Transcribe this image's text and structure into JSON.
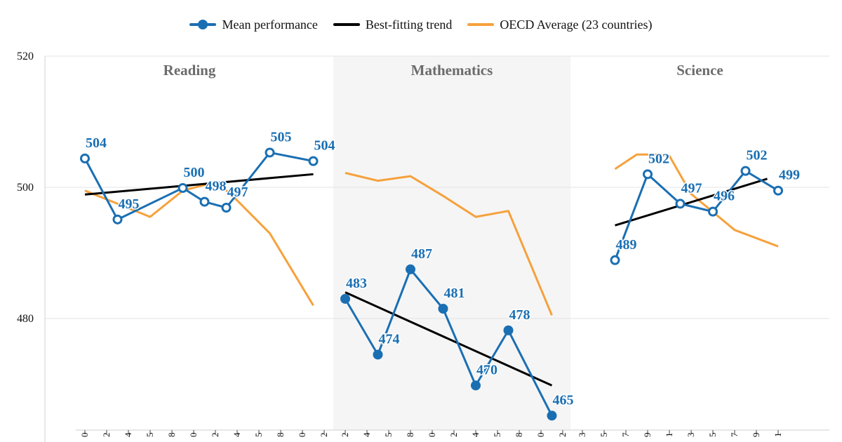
{
  "legend": {
    "mean_label": "Mean performance",
    "trend_label": "Best-fitting trend",
    "oecd_label": "OECD Average (23 countries)"
  },
  "colors": {
    "mean": "#1a6fb3",
    "trend": "#000000",
    "oecd": "#f6a13c",
    "panel_shade": "#f5f5f5",
    "grid": "#e3e3e3",
    "title": "#6b6b6b"
  },
  "chart_data": {
    "type": "line",
    "ylim": [
      463,
      520
    ],
    "yticks": [
      480,
      500,
      520
    ],
    "grid": true,
    "legend_position": "top-center",
    "panels": [
      {
        "title": "Reading",
        "x_tick_labels": [
          "0",
          "2",
          "4",
          "5",
          "8",
          "0",
          "2",
          "4",
          "5",
          "8",
          "0",
          "2"
        ],
        "mean": [
          [
            0,
            504.4
          ],
          [
            1.5,
            495.1
          ],
          [
            4.5,
            499.9
          ],
          [
            5.5,
            497.8
          ],
          [
            6.5,
            496.9
          ],
          [
            8.5,
            505.3
          ],
          [
            10.5,
            504.0
          ]
        ],
        "mean_labels": [
          "504",
          "495",
          "500",
          "498",
          "497",
          "505",
          "504"
        ],
        "trend": [
          [
            0,
            498.9
          ],
          [
            10.5,
            502.0
          ]
        ],
        "oecd": [
          [
            0,
            499.5
          ],
          [
            1.5,
            497.5
          ],
          [
            3,
            495.5
          ],
          [
            4.5,
            499.5
          ],
          [
            6,
            500.8
          ],
          [
            6.7,
            499.0
          ],
          [
            8.5,
            493.0
          ],
          [
            10.5,
            482.0
          ]
        ]
      },
      {
        "title": "Mathematics",
        "x_tick_labels": [
          "2",
          "4",
          "5",
          "8",
          "0",
          "2",
          "4",
          "5",
          "8",
          "0",
          "2"
        ],
        "mean": [
          [
            0,
            483.0
          ],
          [
            1.5,
            474.5
          ],
          [
            3,
            487.5
          ],
          [
            4.5,
            481.5
          ],
          [
            6,
            469.8
          ],
          [
            7.5,
            478.2
          ],
          [
            9.5,
            465.2
          ]
        ],
        "mean_labels": [
          "483",
          "474",
          "487",
          "481",
          "470",
          "478",
          "465"
        ],
        "trend": [
          [
            0,
            484.0
          ],
          [
            9.5,
            469.8
          ]
        ],
        "oecd": [
          [
            0,
            502.2
          ],
          [
            1.5,
            501.0
          ],
          [
            3,
            501.7
          ],
          [
            4.5,
            498.7
          ],
          [
            6,
            495.5
          ],
          [
            7.5,
            496.4
          ],
          [
            9.5,
            480.5
          ]
        ]
      },
      {
        "title": "Science",
        "x_tick_labels": [
          "3",
          "5",
          "7",
          "9",
          "1",
          "3",
          "5",
          "7",
          "9",
          "1"
        ],
        "mean": [
          [
            1.5,
            488.9
          ],
          [
            3,
            502.0
          ],
          [
            4.5,
            497.5
          ],
          [
            6,
            496.3
          ],
          [
            7.5,
            502.5
          ],
          [
            9,
            499.5
          ]
        ],
        "mean_labels": [
          "489",
          "502",
          "497",
          "496",
          "502",
          "499"
        ],
        "trend": [
          [
            1.5,
            494.2
          ],
          [
            8.5,
            501.3
          ]
        ],
        "oecd": [
          [
            1.5,
            502.8
          ],
          [
            2.5,
            505.0
          ],
          [
            3.5,
            505.0
          ],
          [
            4,
            504.8
          ],
          [
            5,
            499.0
          ],
          [
            7,
            493.5
          ],
          [
            9,
            491.0
          ]
        ]
      }
    ]
  }
}
